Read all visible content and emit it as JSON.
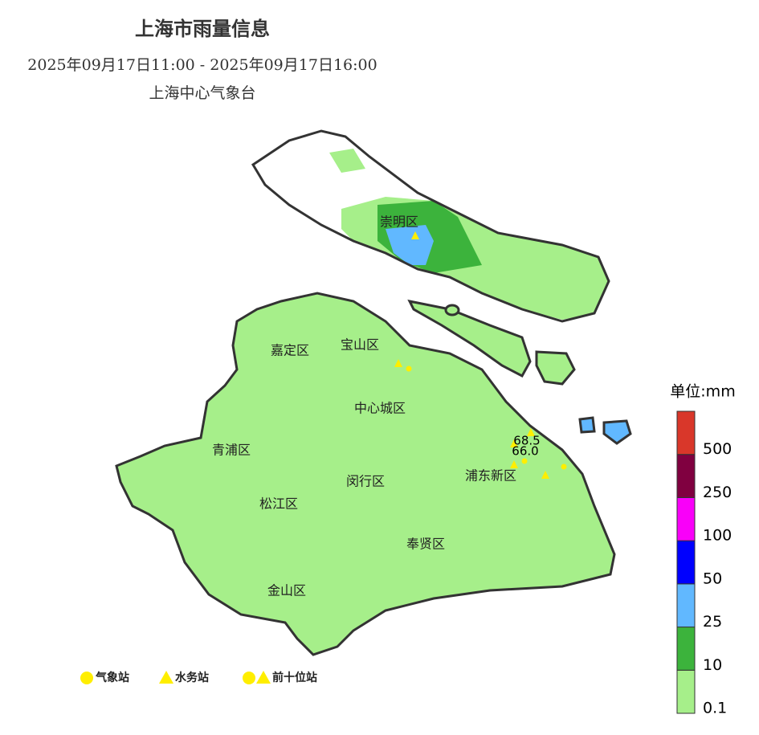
{
  "header": {
    "title": "上海市雨量信息",
    "time_range": "2025年09月17日11:00 - 2025年09月17日16:00",
    "issuer": "上海中心气象台"
  },
  "map": {
    "districts": [
      {
        "label": "崇明区"
      },
      {
        "label": "嘉定区"
      },
      {
        "label": "宝山区"
      },
      {
        "label": "中心城区"
      },
      {
        "label": "青浦区"
      },
      {
        "label": "闵行区"
      },
      {
        "label": "浦东新区"
      },
      {
        "label": "松江区"
      },
      {
        "label": "奉贤区"
      },
      {
        "label": "金山区"
      }
    ],
    "station_values": [
      "68.5",
      "66.0"
    ]
  },
  "scale": {
    "unit": "单位:mm",
    "ticks": [
      "0.1",
      "10",
      "25",
      "50",
      "100",
      "250",
      "500"
    ],
    "colors": [
      "#a6ef8a",
      "#3cb33c",
      "#61b8ff",
      "#0000fe",
      "#f900f9",
      "#800040",
      "#d9372a"
    ]
  },
  "station_legend": [
    {
      "label": "气象站"
    },
    {
      "label": "水务站"
    },
    {
      "label": "前十位站"
    }
  ]
}
